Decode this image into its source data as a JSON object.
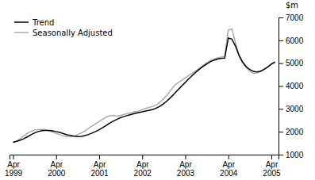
{
  "chart_data": {
    "type": "line",
    "title": "",
    "ylabel": "$m",
    "categories": [
      "Apr\n1999",
      null,
      null,
      null,
      null,
      null,
      null,
      null,
      null,
      null,
      null,
      null,
      "Apr\n2000",
      null,
      null,
      null,
      null,
      null,
      null,
      null,
      null,
      null,
      null,
      null,
      "Apr\n2001",
      null,
      null,
      null,
      null,
      null,
      null,
      null,
      null,
      null,
      null,
      null,
      "Apr\n2002",
      null,
      null,
      null,
      null,
      null,
      null,
      null,
      null,
      null,
      null,
      null,
      "Apr\n2003",
      null,
      null,
      null,
      null,
      null,
      null,
      null,
      null,
      null,
      null,
      null,
      "Apr\n2004",
      null,
      null,
      null,
      null,
      null,
      null,
      null,
      null,
      null,
      null,
      null,
      "Apr\n2005",
      null
    ],
    "series": [
      {
        "name": "Trend",
        "color": "#000000",
        "values": [
          1550,
          1580,
          1630,
          1700,
          1780,
          1870,
          1950,
          2010,
          2050,
          2060,
          2060,
          2040,
          2010,
          1970,
          1920,
          1870,
          1840,
          1810,
          1790,
          1800,
          1830,
          1880,
          1940,
          2010,
          2090,
          2180,
          2280,
          2380,
          2470,
          2550,
          2620,
          2670,
          2720,
          2760,
          2800,
          2840,
          2870,
          2910,
          2940,
          2980,
          3040,
          3120,
          3230,
          3360,
          3510,
          3670,
          3840,
          4000,
          4160,
          4320,
          4470,
          4610,
          4740,
          4860,
          4970,
          5060,
          5130,
          5180,
          5210,
          5220,
          6100,
          6050,
          5750,
          5350,
          5050,
          4850,
          4720,
          4640,
          4620,
          4650,
          4730,
          4840,
          4960,
          5050
        ]
      },
      {
        "name": "Seasonally Adjusted",
        "color": "#aaaaaa",
        "values": [
          1520,
          1600,
          1700,
          1820,
          1940,
          2020,
          2080,
          2090,
          2100,
          2090,
          2040,
          1990,
          1930,
          1870,
          1820,
          1790,
          1780,
          1810,
          1870,
          1950,
          2030,
          2150,
          2250,
          2350,
          2450,
          2550,
          2650,
          2700,
          2720,
          2680,
          2720,
          2760,
          2800,
          2830,
          2880,
          2900,
          2970,
          3020,
          3070,
          3110,
          3180,
          3300,
          3450,
          3620,
          3830,
          4020,
          4150,
          4250,
          4360,
          4460,
          4560,
          4670,
          4790,
          4910,
          5020,
          5110,
          5180,
          5230,
          5270,
          5300,
          6450,
          6500,
          5900,
          5300,
          5000,
          4800,
          4650,
          4550,
          4580,
          4630,
          4720,
          4830,
          4960,
          5050
        ]
      }
    ],
    "ylim": [
      1000,
      7000
    ],
    "yticks": [
      1000,
      2000,
      3000,
      4000,
      5000,
      6000,
      7000
    ],
    "legend": "upper left",
    "grid": false
  }
}
